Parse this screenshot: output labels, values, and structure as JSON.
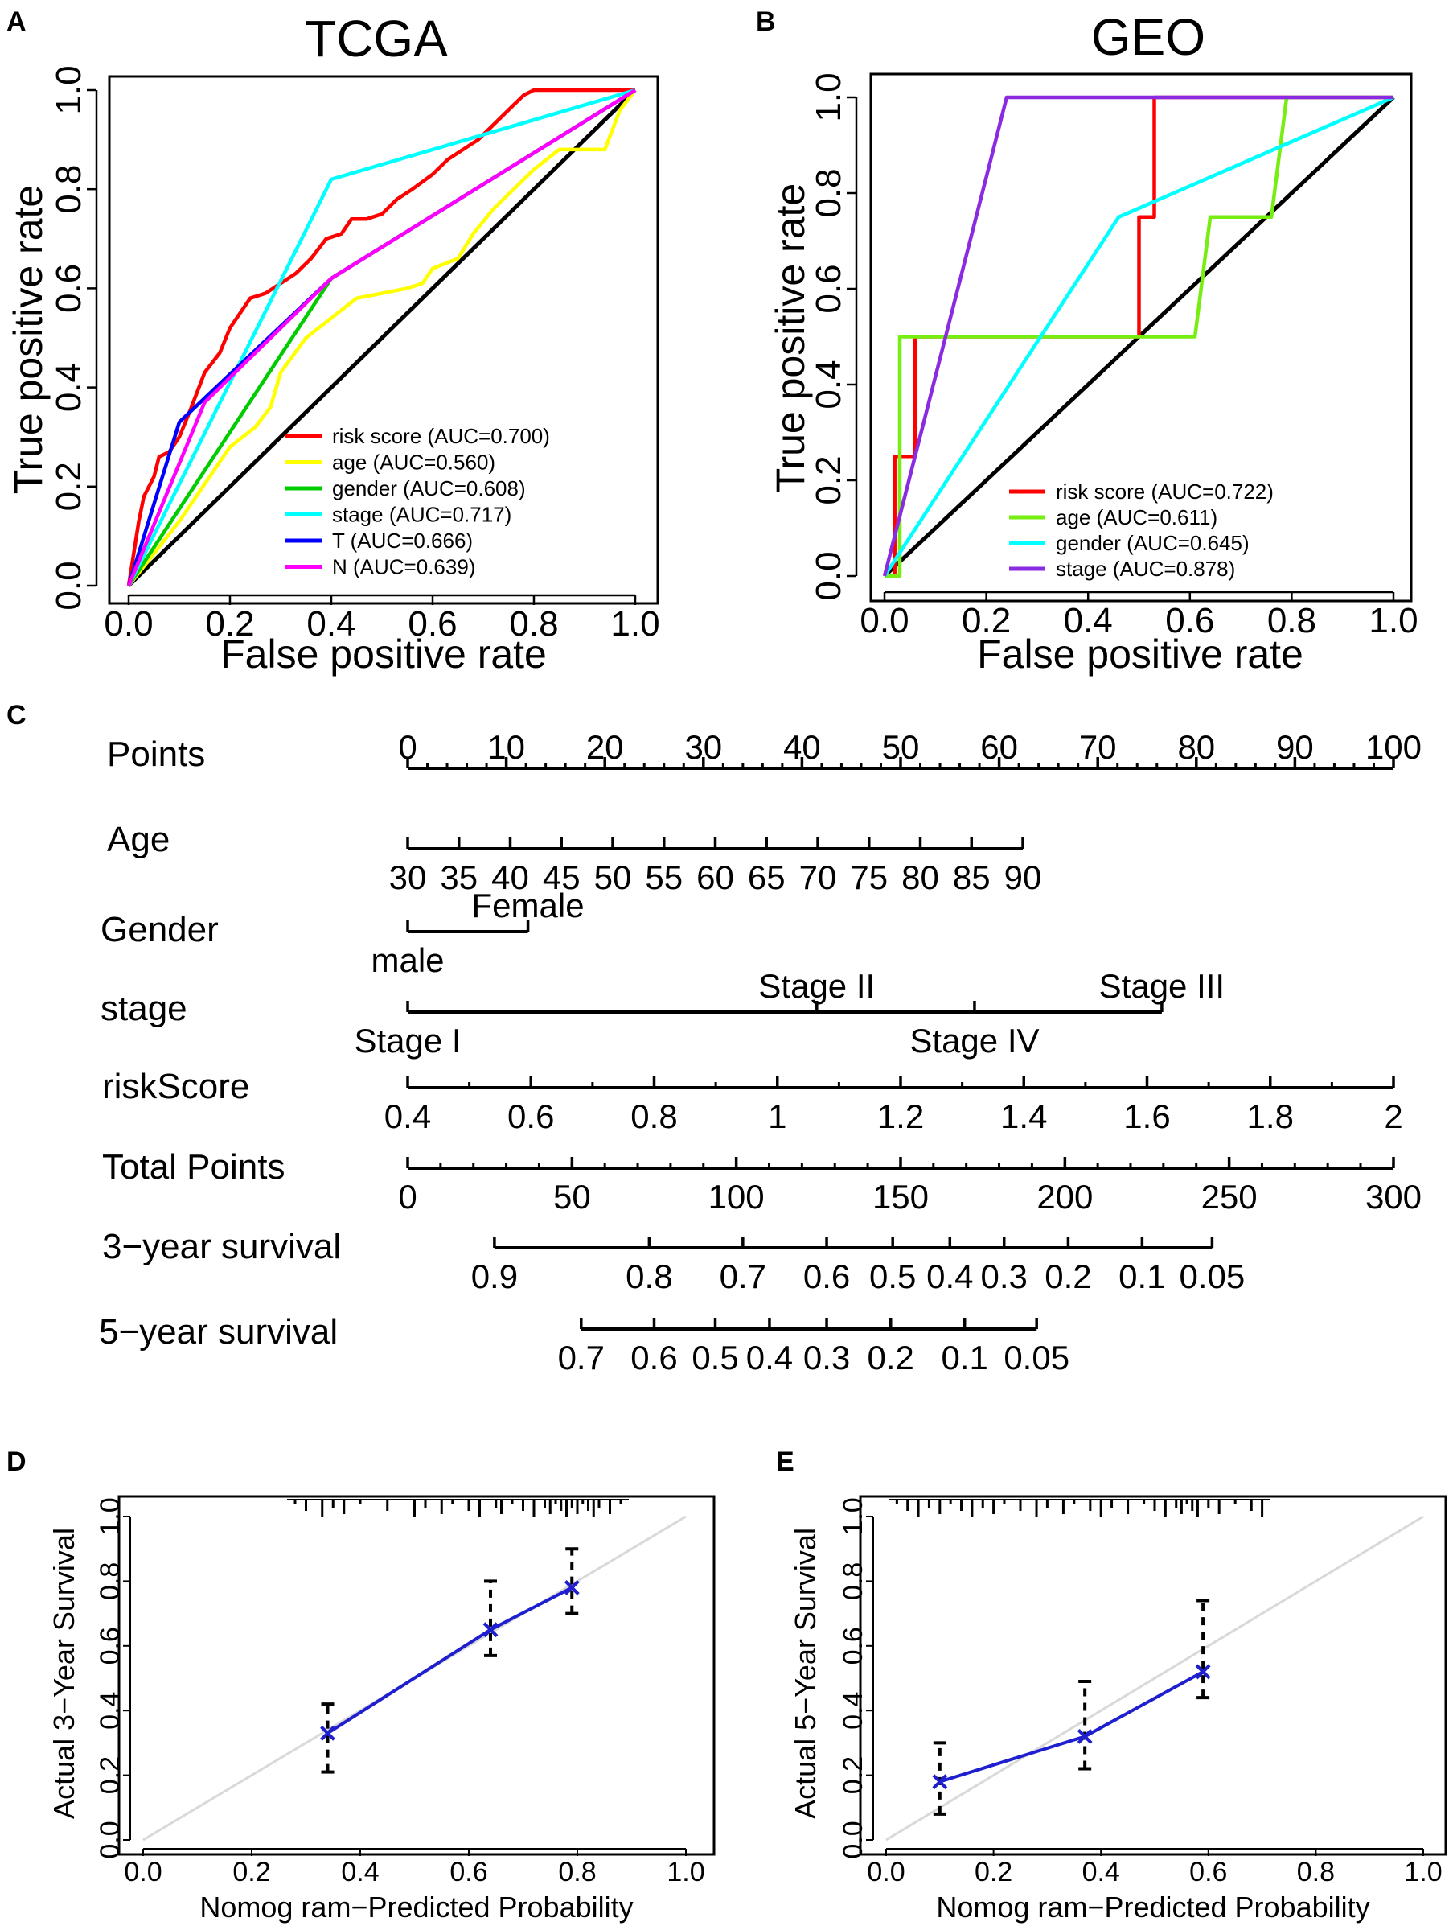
{
  "panel_letters": {
    "a": "A",
    "b": "B",
    "c": "C",
    "d": "D",
    "e": "E"
  },
  "chart_data": [
    {
      "id": "A",
      "type": "line",
      "title": "TCGA",
      "xlabel": "False positive rate",
      "ylabel": "True positive rate",
      "xlim": [
        0,
        1
      ],
      "ylim": [
        0,
        1
      ],
      "xticks": [
        "0.0",
        "0.2",
        "0.4",
        "0.6",
        "0.8",
        "1.0"
      ],
      "yticks": [
        "0.0",
        "0.2",
        "0.4",
        "0.6",
        "0.8",
        "1.0"
      ],
      "diagonal_color": "#000000",
      "legend_position": "bottom-right",
      "series": [
        {
          "name": "risk score (AUC=0.700)",
          "color": "#ff0000",
          "x": [
            0,
            0.02,
            0.03,
            0.05,
            0.06,
            0.08,
            0.1,
            0.12,
            0.15,
            0.18,
            0.2,
            0.22,
            0.24,
            0.27,
            0.3,
            0.33,
            0.36,
            0.39,
            0.42,
            0.44,
            0.47,
            0.5,
            0.53,
            0.56,
            0.6,
            0.63,
            0.66,
            0.69,
            0.72,
            0.75,
            0.78,
            0.8,
            0.85,
            0.9,
            0.95,
            1
          ],
          "y": [
            0,
            0.13,
            0.18,
            0.22,
            0.26,
            0.27,
            0.3,
            0.35,
            0.43,
            0.47,
            0.52,
            0.55,
            0.58,
            0.59,
            0.61,
            0.63,
            0.66,
            0.7,
            0.71,
            0.74,
            0.74,
            0.75,
            0.78,
            0.8,
            0.83,
            0.86,
            0.88,
            0.9,
            0.93,
            0.96,
            0.99,
            1.0,
            1.0,
            1.0,
            1.0,
            1
          ]
        },
        {
          "name": "age (AUC=0.560)",
          "color": "#ffff00",
          "x": [
            0,
            0.1,
            0.2,
            0.25,
            0.28,
            0.3,
            0.35,
            0.4,
            0.45,
            0.5,
            0.55,
            0.58,
            0.6,
            0.65,
            0.68,
            0.72,
            0.76,
            0.8,
            0.85,
            0.9,
            0.94,
            0.97,
            1
          ],
          "y": [
            0,
            0.13,
            0.28,
            0.32,
            0.36,
            0.43,
            0.5,
            0.54,
            0.58,
            0.59,
            0.6,
            0.61,
            0.64,
            0.66,
            0.71,
            0.76,
            0.8,
            0.84,
            0.88,
            0.88,
            0.88,
            0.96,
            1
          ]
        },
        {
          "name": "gender (AUC=0.608)",
          "color": "#00cc00",
          "x": [
            0,
            0.4,
            1
          ],
          "y": [
            0,
            0.62,
            1
          ]
        },
        {
          "name": "stage (AUC=0.717)",
          "color": "#00ffff",
          "x": [
            0,
            0.4,
            1
          ],
          "y": [
            0,
            0.82,
            1
          ]
        },
        {
          "name": "T (AUC=0.666)",
          "color": "#0000ff",
          "x": [
            0,
            0.1,
            0.4,
            1
          ],
          "y": [
            0,
            0.33,
            0.62,
            1
          ]
        },
        {
          "name": "N (AUC=0.639)",
          "color": "#ff00ff",
          "x": [
            0,
            0.15,
            0.4,
            1
          ],
          "y": [
            0,
            0.37,
            0.62,
            1
          ]
        }
      ]
    },
    {
      "id": "B",
      "type": "line",
      "title": "GEO",
      "xlabel": "False positive rate",
      "ylabel": "True positive rate",
      "xlim": [
        0,
        1
      ],
      "ylim": [
        0,
        1
      ],
      "xticks": [
        "0.0",
        "0.2",
        "0.4",
        "0.6",
        "0.8",
        "1.0"
      ],
      "yticks": [
        "0.0",
        "0.2",
        "0.4",
        "0.6",
        "0.8",
        "1.0"
      ],
      "diagonal_color": "#000000",
      "legend_position": "bottom-right",
      "series": [
        {
          "name": "risk score (AUC=0.722)",
          "color": "#ff0000",
          "x": [
            0,
            0.02,
            0.02,
            0.06,
            0.06,
            0.5,
            0.5,
            0.53,
            0.53,
            1
          ],
          "y": [
            0,
            0,
            0.25,
            0.25,
            0.5,
            0.5,
            0.75,
            0.75,
            1,
            1
          ]
        },
        {
          "name": "age (AUC=0.611)",
          "color": "#77ee11",
          "x": [
            0,
            0.03,
            0.03,
            0.61,
            0.64,
            0.76,
            0.79,
            1
          ],
          "y": [
            0,
            0,
            0.5,
            0.5,
            0.75,
            0.75,
            1,
            1
          ]
        },
        {
          "name": "gender (AUC=0.645)",
          "color": "#00ffff",
          "x": [
            0,
            0.46,
            1
          ],
          "y": [
            0,
            0.75,
            1
          ]
        },
        {
          "name": "stage (AUC=0.878)",
          "color": "#8a2be2",
          "x": [
            0,
            0.24,
            1
          ],
          "y": [
            0,
            1,
            1
          ]
        }
      ]
    },
    {
      "id": "C",
      "type": "nomogram",
      "rows": [
        {
          "label": "Points",
          "ticks": [
            {
              "label": "0",
              "pos": 0
            },
            {
              "label": "10",
              "pos": 10
            },
            {
              "label": "20",
              "pos": 20
            },
            {
              "label": "30",
              "pos": 30
            },
            {
              "label": "40",
              "pos": 40
            },
            {
              "label": "50",
              "pos": 50
            },
            {
              "label": "60",
              "pos": 60
            },
            {
              "label": "70",
              "pos": 70
            },
            {
              "label": "80",
              "pos": 80
            },
            {
              "label": "90",
              "pos": 90
            },
            {
              "label": "100",
              "pos": 100
            }
          ],
          "minor_step": 2,
          "labels_above": true
        },
        {
          "label": "Age",
          "ticks": [
            {
              "label": "30",
              "pos": 0
            },
            {
              "label": "35",
              "pos": 5.2
            },
            {
              "label": "40",
              "pos": 10.4
            },
            {
              "label": "45",
              "pos": 15.6
            },
            {
              "label": "50",
              "pos": 20.8
            },
            {
              "label": "55",
              "pos": 26
            },
            {
              "label": "60",
              "pos": 31.2
            },
            {
              "label": "65",
              "pos": 36.4
            },
            {
              "label": "70",
              "pos": 41.6
            },
            {
              "label": "75",
              "pos": 46.8
            },
            {
              "label": "80",
              "pos": 52
            },
            {
              "label": "85",
              "pos": 57.2
            },
            {
              "label": "90",
              "pos": 62.4
            }
          ]
        },
        {
          "label": "Gender",
          "ticks": [
            {
              "label": "male",
              "pos": 0,
              "side": "below"
            },
            {
              "label": "Female",
              "pos": 12.2,
              "side": "above"
            }
          ]
        },
        {
          "label": "stage",
          "ticks": [
            {
              "label": "Stage I",
              "pos": 0,
              "side": "below"
            },
            {
              "label": "Stage II",
              "pos": 41.5,
              "side": "above"
            },
            {
              "label": "Stage IV",
              "pos": 57.5,
              "side": "below"
            },
            {
              "label": "Stage III",
              "pos": 76.5,
              "side": "above"
            }
          ]
        },
        {
          "label": "riskScore",
          "ticks": [
            {
              "label": "0.4",
              "pos": 0
            },
            {
              "label": "0.6",
              "pos": 12.5
            },
            {
              "label": "0.8",
              "pos": 25
            },
            {
              "label": "1",
              "pos": 37.5
            },
            {
              "label": "1.2",
              "pos": 50
            },
            {
              "label": "1.4",
              "pos": 62.5
            },
            {
              "label": "1.6",
              "pos": 75
            },
            {
              "label": "1.8",
              "pos": 87.5
            },
            {
              "label": "2",
              "pos": 100
            }
          ],
          "minor_step": 6.25
        },
        {
          "label": "Total Points",
          "ticks": [
            {
              "label": "0",
              "pos": 0
            },
            {
              "label": "50",
              "pos": 16.67
            },
            {
              "label": "100",
              "pos": 33.33
            },
            {
              "label": "150",
              "pos": 50
            },
            {
              "label": "200",
              "pos": 66.67
            },
            {
              "label": "250",
              "pos": 83.33
            },
            {
              "label": "300",
              "pos": 100
            }
          ],
          "minor_step": 3.333
        },
        {
          "label": "3−year survival",
          "ticks": [
            {
              "label": "0.9",
              "pos": 8.8
            },
            {
              "label": "0.8",
              "pos": 24.5
            },
            {
              "label": "0.7",
              "pos": 34
            },
            {
              "label": "0.6",
              "pos": 42.5
            },
            {
              "label": "0.5",
              "pos": 49.2
            },
            {
              "label": "0.4",
              "pos": 55
            },
            {
              "label": "0.3",
              "pos": 60.5
            },
            {
              "label": "0.2",
              "pos": 67
            },
            {
              "label": "0.1",
              "pos": 74.5
            },
            {
              "label": "0.05",
              "pos": 81.6
            }
          ]
        },
        {
          "label": "5−year survival",
          "ticks": [
            {
              "label": "0.7",
              "pos": 17.6
            },
            {
              "label": "0.6",
              "pos": 25
            },
            {
              "label": "0.5",
              "pos": 31.2
            },
            {
              "label": "0.4",
              "pos": 36.7
            },
            {
              "label": "0.3",
              "pos": 42.5
            },
            {
              "label": "0.2",
              "pos": 49
            },
            {
              "label": "0.1",
              "pos": 56.5
            },
            {
              "label": "0.05",
              "pos": 63.8
            }
          ]
        }
      ]
    },
    {
      "id": "D",
      "type": "scatter",
      "xlabel": "Nomog ram−Predicted Probability",
      "ylabel": "Actual 3−Year Survival",
      "xlim": [
        0,
        1
      ],
      "ylim": [
        0,
        1
      ],
      "xticks": [
        "0.0",
        "0.2",
        "0.4",
        "0.6",
        "0.8",
        "1.0"
      ],
      "yticks": [
        "0.0",
        "0.2",
        "0.4",
        "0.6",
        "0.8",
        "1.0"
      ],
      "ideal_line_color": "#d9d9d9",
      "calibration_color": "#1f1fd0",
      "points": [
        {
          "x": 0.34,
          "y": 0.33,
          "low": 0.21,
          "high": 0.42
        },
        {
          "x": 0.64,
          "y": 0.65,
          "low": 0.57,
          "high": 0.8
        },
        {
          "x": 0.79,
          "y": 0.78,
          "low": 0.7,
          "high": 0.9
        }
      ],
      "rug": [
        0.28,
        0.3,
        0.33,
        0.35,
        0.37,
        0.4,
        0.45,
        0.5,
        0.52,
        0.55,
        0.57,
        0.6,
        0.62,
        0.65,
        0.66,
        0.68,
        0.7,
        0.72,
        0.74,
        0.75,
        0.76,
        0.77,
        0.78,
        0.79,
        0.8,
        0.81,
        0.82,
        0.83,
        0.84,
        0.86,
        0.88
      ]
    },
    {
      "id": "E",
      "type": "scatter",
      "xlabel": "Nomog ram−Predicted Probability",
      "ylabel": "Actual 5−Year Survival",
      "xlim": [
        0,
        1
      ],
      "ylim": [
        0,
        1
      ],
      "xticks": [
        "0.0",
        "0.2",
        "0.4",
        "0.6",
        "0.8",
        "1.0"
      ],
      "yticks": [
        "0.0",
        "0.2",
        "0.4",
        "0.6",
        "0.8",
        "1.0"
      ],
      "ideal_line_color": "#d9d9d9",
      "calibration_color": "#1f1fd0",
      "points": [
        {
          "x": 0.1,
          "y": 0.18,
          "low": 0.08,
          "high": 0.3
        },
        {
          "x": 0.37,
          "y": 0.32,
          "low": 0.22,
          "high": 0.49
        },
        {
          "x": 0.59,
          "y": 0.52,
          "low": 0.44,
          "high": 0.74
        }
      ],
      "rug": [
        0.02,
        0.04,
        0.06,
        0.08,
        0.1,
        0.12,
        0.14,
        0.16,
        0.18,
        0.2,
        0.22,
        0.25,
        0.28,
        0.3,
        0.33,
        0.35,
        0.38,
        0.4,
        0.42,
        0.45,
        0.48,
        0.5,
        0.52,
        0.54,
        0.55,
        0.56,
        0.57,
        0.58,
        0.6,
        0.62,
        0.65,
        0.68,
        0.7
      ]
    }
  ]
}
